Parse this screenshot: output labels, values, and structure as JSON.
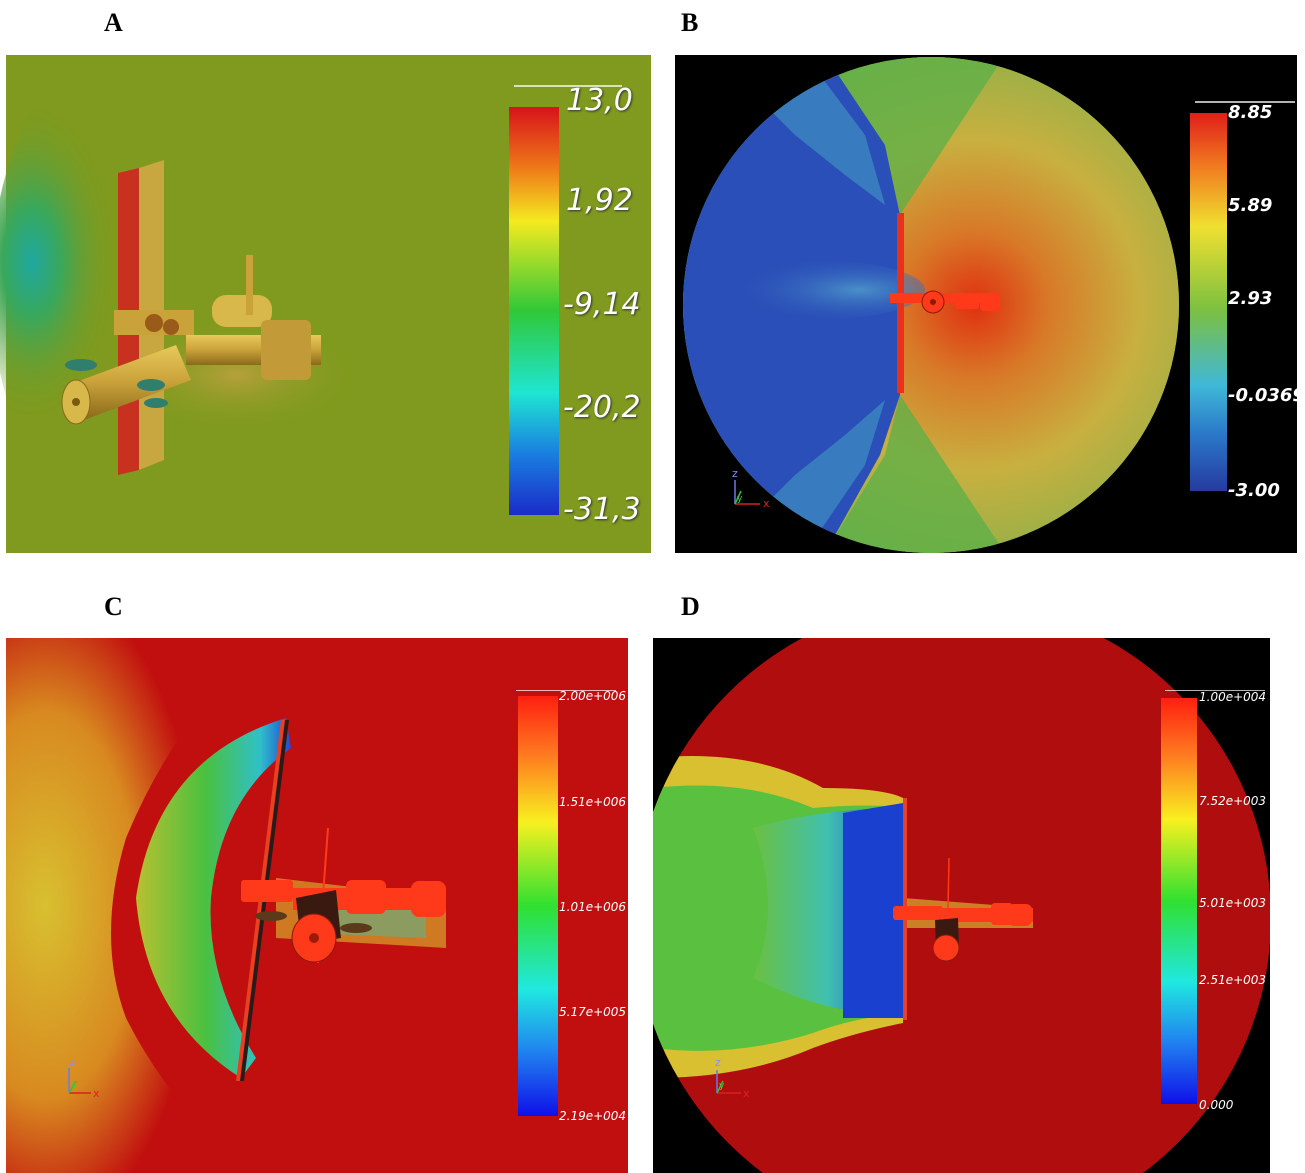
{
  "panels": [
    {
      "label": "A",
      "colorbar": {
        "ticks": [
          "13,0",
          "1,92",
          "-9,14",
          "-20,2",
          "-31,3"
        ]
      }
    },
    {
      "label": "B",
      "colorbar": {
        "ticks": [
          "8.85",
          "5.89",
          "2.93",
          "-0.0369",
          "-3.00"
        ]
      }
    },
    {
      "label": "C",
      "colorbar": {
        "ticks": [
          "2.00e+006",
          "1.51e+006",
          "1.01e+006",
          "5.17e+005",
          "2.19e+004"
        ]
      }
    },
    {
      "label": "D",
      "colorbar": {
        "ticks": [
          "1.00e+004",
          "7.52e+003",
          "5.01e+003",
          "2.51e+003",
          "0.000"
        ]
      }
    }
  ],
  "axes_triad": {
    "x": "x",
    "y": "y",
    "z": "z"
  },
  "colors": {
    "panelA_bg": "#7f9a1e",
    "panelB_bg": "#000000",
    "panelC_bg": "#c10f0f",
    "panelD_bg": "#b00e0e",
    "cold": "#2a4fb8",
    "station_red": "#ff3a1a",
    "station_gold": "#d7b23a"
  }
}
